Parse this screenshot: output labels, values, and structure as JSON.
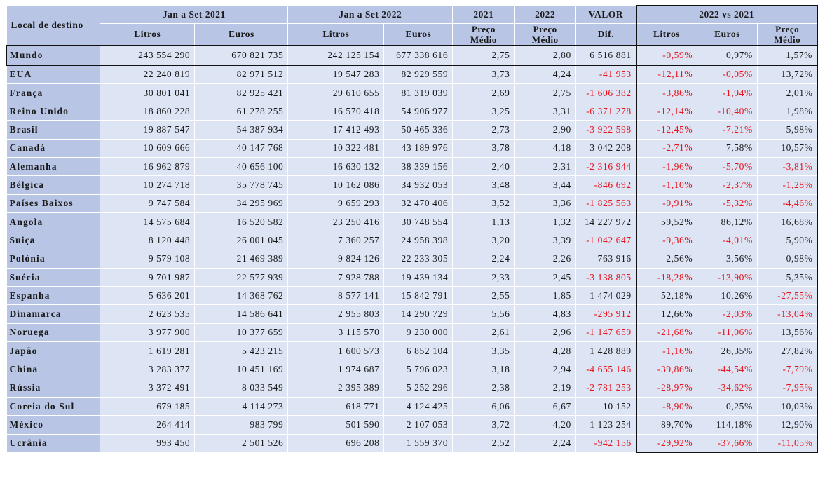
{
  "header": {
    "destination": "Local de destino",
    "group_2021": "Jan a Set 2021",
    "group_2022": "Jan a Set 2022",
    "year_2021": "2021",
    "year_2022": "2022",
    "valor": "VALOR",
    "comparison": "2022 vs 2021",
    "litros": "Litros",
    "euros": "Euros",
    "preco": "Preço",
    "medio": "Médio",
    "dif": "Dif."
  },
  "rows": [
    {
      "name": "Mundo",
      "l21": "243 554 290",
      "e21": "670 821 735",
      "l22": "242 125 154",
      "e22": "677 338 616",
      "p21": "2,75",
      "p22": "2,80",
      "dif": "6 516 881",
      "cl": "-0,59%",
      "ce": "0,97%",
      "cp": "1,57%"
    },
    {
      "name": "EUA",
      "l21": "22 240 819",
      "e21": "82 971 512",
      "l22": "19 547 283",
      "e22": "82 929 559",
      "p21": "3,73",
      "p22": "4,24",
      "dif": "-41 953",
      "cl": "-12,11%",
      "ce": "-0,05%",
      "cp": "13,72%"
    },
    {
      "name": "França",
      "l21": "30 801 041",
      "e21": "82 925 421",
      "l22": "29 610 655",
      "e22": "81 319 039",
      "p21": "2,69",
      "p22": "2,75",
      "dif": "-1 606 382",
      "cl": "-3,86%",
      "ce": "-1,94%",
      "cp": "2,01%"
    },
    {
      "name": "Reino Unido",
      "l21": "18 860 228",
      "e21": "61 278 255",
      "l22": "16 570 418",
      "e22": "54 906 977",
      "p21": "3,25",
      "p22": "3,31",
      "dif": "-6 371 278",
      "cl": "-12,14%",
      "ce": "-10,40%",
      "cp": "1,98%"
    },
    {
      "name": "Brasil",
      "l21": "19 887 547",
      "e21": "54 387 934",
      "l22": "17 412 493",
      "e22": "50 465 336",
      "p21": "2,73",
      "p22": "2,90",
      "dif": "-3 922 598",
      "cl": "-12,45%",
      "ce": "-7,21%",
      "cp": "5,98%"
    },
    {
      "name": "Canadá",
      "l21": "10 609 666",
      "e21": "40 147 768",
      "l22": "10 322 481",
      "e22": "43 189 976",
      "p21": "3,78",
      "p22": "4,18",
      "dif": "3 042 208",
      "cl": "-2,71%",
      "ce": "7,58%",
      "cp": "10,57%"
    },
    {
      "name": "Alemanha",
      "l21": "16 962 879",
      "e21": "40 656 100",
      "l22": "16 630 132",
      "e22": "38 339 156",
      "p21": "2,40",
      "p22": "2,31",
      "dif": "-2 316 944",
      "cl": "-1,96%",
      "ce": "-5,70%",
      "cp": "-3,81%"
    },
    {
      "name": "Bélgica",
      "l21": "10 274 718",
      "e21": "35 778 745",
      "l22": "10 162 086",
      "e22": "34 932 053",
      "p21": "3,48",
      "p22": "3,44",
      "dif": "-846 692",
      "cl": "-1,10%",
      "ce": "-2,37%",
      "cp": "-1,28%"
    },
    {
      "name": "Países Baixos",
      "l21": "9 747 584",
      "e21": "34 295 969",
      "l22": "9 659 293",
      "e22": "32 470 406",
      "p21": "3,52",
      "p22": "3,36",
      "dif": "-1 825 563",
      "cl": "-0,91%",
      "ce": "-5,32%",
      "cp": "-4,46%"
    },
    {
      "name": "Angola",
      "l21": "14 575 684",
      "e21": "16 520 582",
      "l22": "23 250 416",
      "e22": "30 748 554",
      "p21": "1,13",
      "p22": "1,32",
      "dif": "14 227 972",
      "cl": "59,52%",
      "ce": "86,12%",
      "cp": "16,68%"
    },
    {
      "name": "Suiça",
      "l21": "8 120 448",
      "e21": "26 001 045",
      "l22": "7 360 257",
      "e22": "24 958 398",
      "p21": "3,20",
      "p22": "3,39",
      "dif": "-1 042 647",
      "cl": "-9,36%",
      "ce": "-4,01%",
      "cp": "5,90%"
    },
    {
      "name": "Polónia",
      "l21": "9 579 108",
      "e21": "21 469 389",
      "l22": "9 824 126",
      "e22": "22 233 305",
      "p21": "2,24",
      "p22": "2,26",
      "dif": "763 916",
      "cl": "2,56%",
      "ce": "3,56%",
      "cp": "0,98%"
    },
    {
      "name": "Suécia",
      "l21": "9 701 987",
      "e21": "22 577 939",
      "l22": "7 928 788",
      "e22": "19 439 134",
      "p21": "2,33",
      "p22": "2,45",
      "dif": "-3 138 805",
      "cl": "-18,28%",
      "ce": "-13,90%",
      "cp": "5,35%"
    },
    {
      "name": "Espanha",
      "l21": "5 636 201",
      "e21": "14 368 762",
      "l22": "8 577 141",
      "e22": "15 842 791",
      "p21": "2,55",
      "p22": "1,85",
      "dif": "1 474 029",
      "cl": "52,18%",
      "ce": "10,26%",
      "cp": "-27,55%"
    },
    {
      "name": "Dinamarca",
      "l21": "2 623 535",
      "e21": "14 586 641",
      "l22": "2 955 803",
      "e22": "14 290 729",
      "p21": "5,56",
      "p22": "4,83",
      "dif": "-295 912",
      "cl": "12,66%",
      "ce": "-2,03%",
      "cp": "-13,04%"
    },
    {
      "name": "Noruega",
      "l21": "3 977 900",
      "e21": "10 377 659",
      "l22": "3 115 570",
      "e22": "9 230 000",
      "p21": "2,61",
      "p22": "2,96",
      "dif": "-1 147 659",
      "cl": "-21,68%",
      "ce": "-11,06%",
      "cp": "13,56%"
    },
    {
      "name": "Japão",
      "l21": "1 619 281",
      "e21": "5 423 215",
      "l22": "1 600 573",
      "e22": "6 852 104",
      "p21": "3,35",
      "p22": "4,28",
      "dif": "1 428 889",
      "cl": "-1,16%",
      "ce": "26,35%",
      "cp": "27,82%"
    },
    {
      "name": "China",
      "l21": "3 283 377",
      "e21": "10 451 169",
      "l22": "1 974 687",
      "e22": "5 796 023",
      "p21": "3,18",
      "p22": "2,94",
      "dif": "-4 655 146",
      "cl": "-39,86%",
      "ce": "-44,54%",
      "cp": "-7,79%"
    },
    {
      "name": "Rússia",
      "l21": "3 372 491",
      "e21": "8 033 549",
      "l22": "2 395 389",
      "e22": "5 252 296",
      "p21": "2,38",
      "p22": "2,19",
      "dif": "-2 781 253",
      "cl": "-28,97%",
      "ce": "-34,62%",
      "cp": "-7,95%"
    },
    {
      "name": "Coreia do Sul",
      "l21": "679 185",
      "e21": "4 114 273",
      "l22": "618 771",
      "e22": "4 124 425",
      "p21": "6,06",
      "p22": "6,67",
      "dif": "10 152",
      "cl": "-8,90%",
      "ce": "0,25%",
      "cp": "10,03%"
    },
    {
      "name": "México",
      "l21": "264 414",
      "e21": "983 799",
      "l22": "501 590",
      "e22": "2 107 053",
      "p21": "3,72",
      "p22": "4,20",
      "dif": "1 123 254",
      "cl": "89,70%",
      "ce": "114,18%",
      "cp": "12,90%"
    },
    {
      "name": "Ucrânia",
      "l21": "993 450",
      "e21": "2 501 526",
      "l22": "696 208",
      "e22": "1 559 370",
      "p21": "2,52",
      "p22": "2,24",
      "dif": "-942 156",
      "cl": "-29,92%",
      "ce": "-37,66%",
      "cp": "-11,05%"
    }
  ]
}
